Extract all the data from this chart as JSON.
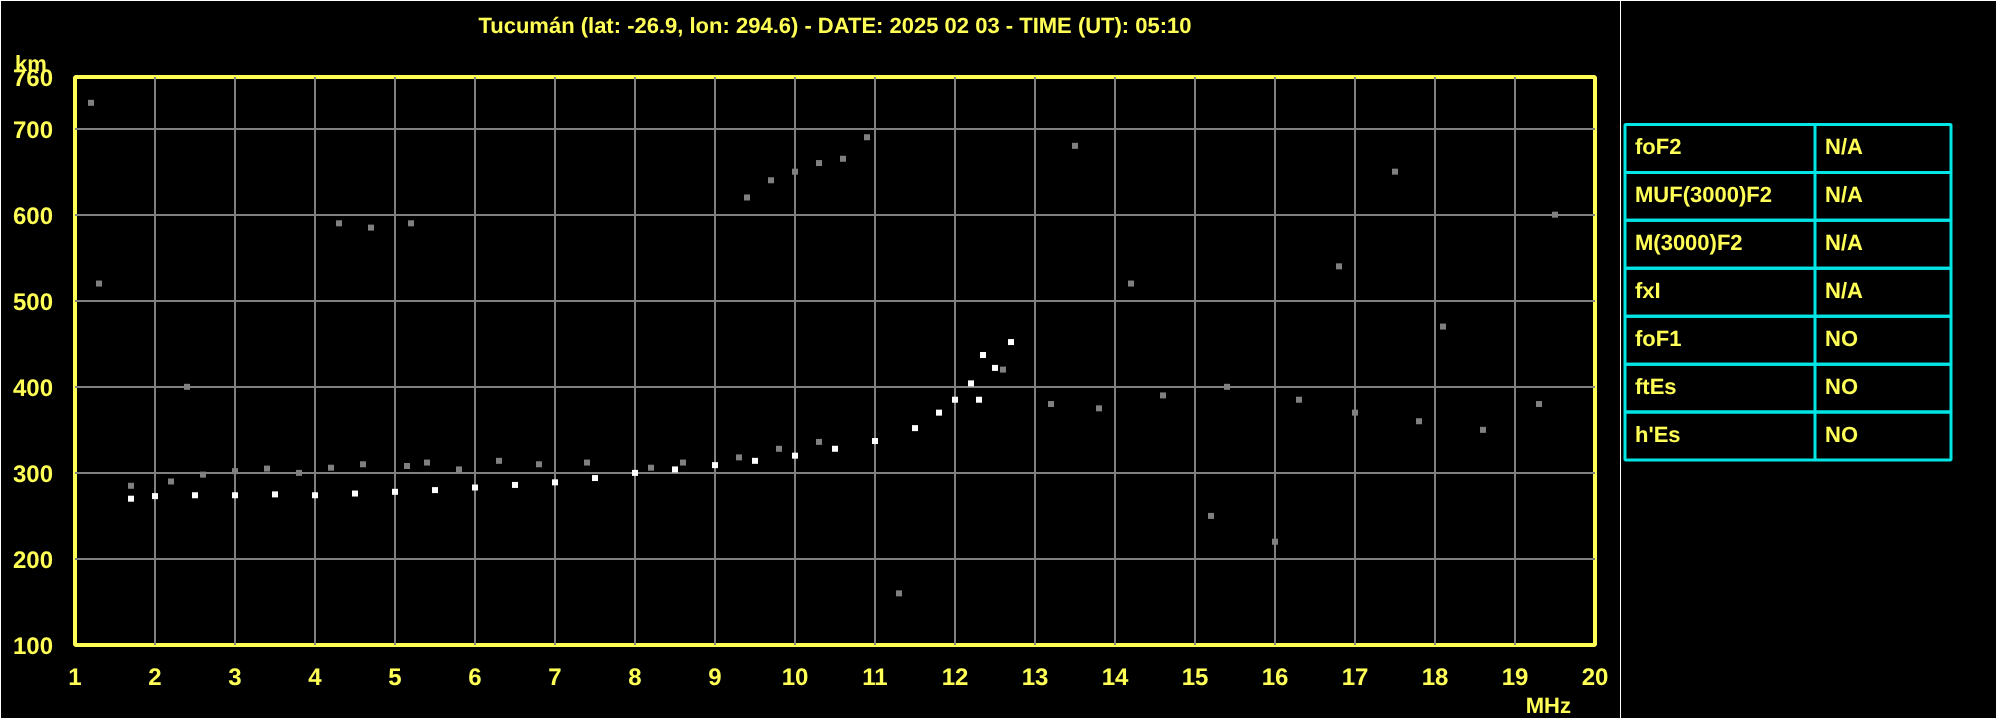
{
  "chart_data": [
    {
      "type": "scatter",
      "title": "Tucumán (lat: -26.9, lon: 294.6) - DATE: 2025 02 03 - TIME (UT): 05:10",
      "xlabel": "MHz",
      "ylabel": "km",
      "xlim": [
        1,
        20
      ],
      "ylim": [
        100,
        760
      ],
      "xticks": [
        1,
        2,
        3,
        4,
        5,
        6,
        7,
        8,
        9,
        10,
        11,
        12,
        13,
        14,
        15,
        16,
        17,
        18,
        19,
        20
      ],
      "yticks": [
        100,
        200,
        300,
        400,
        500,
        600,
        700,
        760
      ],
      "grid": true,
      "marker": "square",
      "series": [
        {
          "color": "#808080",
          "x": [
            1.7,
            2.2,
            2.6,
            3.0,
            3.4,
            3.8,
            4.2,
            4.6,
            5.15,
            5.4,
            5.8,
            6.3,
            6.8,
            7.4,
            8.2,
            8.6,
            9.3,
            9.8,
            10.3,
            9.4,
            9.7,
            10.0,
            10.3,
            10.6,
            10.9,
            4.3,
            4.7,
            5.2,
            2.4,
            1.2,
            1.3,
            12.6,
            13.2,
            13.8,
            14.6,
            15.4,
            16.3,
            17.0,
            17.8,
            18.6,
            19.3,
            14.2,
            16.8,
            18.1,
            19.5,
            15.2,
            16.0,
            13.5,
            17.5,
            11.3
          ],
          "values": [
            285,
            290,
            298,
            302,
            305,
            300,
            306,
            310,
            308,
            312,
            304,
            314,
            310,
            312,
            306,
            312,
            318,
            328,
            336,
            620,
            640,
            650,
            660,
            665,
            690,
            590,
            585,
            590,
            400,
            730,
            520,
            420,
            380,
            375,
            390,
            400,
            385,
            370,
            360,
            350,
            380,
            520,
            540,
            470,
            600,
            250,
            220,
            680,
            650,
            160
          ]
        },
        {
          "color": "#ffffff",
          "x": [
            1.7,
            2.0,
            2.5,
            3.0,
            3.5,
            4.0,
            4.5,
            5.0,
            5.5,
            6.0,
            6.5,
            7.0,
            7.5,
            8.0,
            8.5,
            9.0,
            9.5,
            10.0,
            10.5,
            11.0,
            11.5,
            11.8,
            12.0,
            12.2,
            12.35,
            12.3,
            12.5,
            12.7
          ],
          "values": [
            270,
            273,
            274,
            274,
            275,
            274,
            276,
            278,
            280,
            283,
            286,
            289,
            294,
            300,
            304,
            309,
            314,
            320,
            328,
            337,
            352,
            370,
            385,
            404,
            437,
            385,
            422,
            452
          ]
        }
      ]
    },
    {
      "type": "other",
      "annotations": [
        "foF2",
        "N/A",
        "MUF(3000)F2",
        "N/A",
        "M(3000)F2",
        "N/A",
        "fxI",
        "N/A",
        "foF1",
        "NO",
        "ftEs",
        "NO",
        "h'Es",
        "NO"
      ]
    }
  ]
}
